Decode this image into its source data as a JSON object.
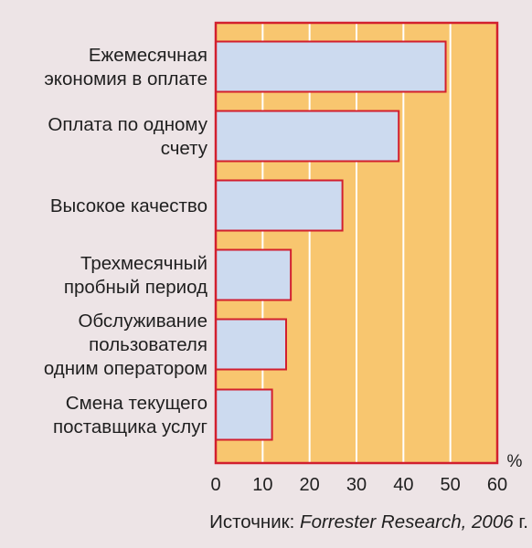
{
  "chart_data": {
    "type": "bar",
    "orientation": "horizontal",
    "categories": [
      [
        "Ежемесячная",
        "экономия в оплате"
      ],
      [
        "Оплата по одному",
        "счету"
      ],
      [
        "Высокое качество"
      ],
      [
        "Трехмесячный",
        "пробный период"
      ],
      [
        "Обслуживание",
        "пользователя",
        "одним оператором"
      ],
      [
        "Смена текущего",
        "поставщика услуг"
      ]
    ],
    "values": [
      49,
      39,
      27,
      16,
      15,
      12
    ],
    "xlim": [
      0,
      60
    ],
    "xticks": [
      "0",
      "10",
      "20",
      "30",
      "40",
      "50",
      "60"
    ],
    "unit": "%",
    "grid": true
  },
  "source": {
    "prefix": "Источник: ",
    "italic": "Forrester Research, 2006",
    "suffix": " г."
  },
  "colors": {
    "background": "#EDE4E6",
    "plot_area": "#F8C66F",
    "bar_fill": "#CCDAEF",
    "bar_stroke": "#D21F2E",
    "frame": "#D21F2E",
    "grid": "#FFFFFF"
  }
}
